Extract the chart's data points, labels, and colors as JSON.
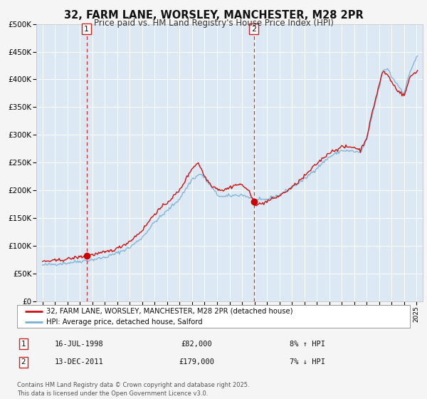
{
  "title": "32, FARM LANE, WORSLEY, MANCHESTER, M28 2PR",
  "subtitle": "Price paid vs. HM Land Registry's House Price Index (HPI)",
  "bg_color": "#dce9f5",
  "outer_bg_color": "#f5f5f5",
  "red_line_label": "32, FARM LANE, WORSLEY, MANCHESTER, M28 2PR (detached house)",
  "blue_line_label": "HPI: Average price, detached house, Salford",
  "sale1_date": "16-JUL-1998",
  "sale1_price": 82000,
  "sale1_hpi": "8% ↑ HPI",
  "sale2_date": "13-DEC-2011",
  "sale2_price": 179000,
  "sale2_hpi": "7% ↓ HPI",
  "vline1_x": 1998.54,
  "vline2_x": 2011.95,
  "dot1_x": 1998.54,
  "dot1_y": 82000,
  "dot2_x": 2011.95,
  "dot2_y": 179000,
  "xlim": [
    1994.5,
    2025.5
  ],
  "ylim": [
    0,
    500000
  ],
  "yticks": [
    0,
    50000,
    100000,
    150000,
    200000,
    250000,
    300000,
    350000,
    400000,
    450000,
    500000
  ],
  "ytick_labels": [
    "£0",
    "£50K",
    "£100K",
    "£150K",
    "£200K",
    "£250K",
    "£300K",
    "£350K",
    "£400K",
    "£450K",
    "£500K"
  ],
  "xtick_years": [
    1995,
    1996,
    1997,
    1998,
    1999,
    2000,
    2001,
    2002,
    2003,
    2004,
    2005,
    2006,
    2007,
    2008,
    2009,
    2010,
    2011,
    2012,
    2013,
    2014,
    2015,
    2016,
    2017,
    2018,
    2019,
    2020,
    2021,
    2022,
    2023,
    2024,
    2025
  ],
  "footer": "Contains HM Land Registry data © Crown copyright and database right 2025.\nThis data is licensed under the Open Government Licence v3.0.",
  "grid_color": "#ffffff",
  "vline_color": "#cc3333",
  "dot_color": "#cc0000",
  "red_line_color": "#cc1111",
  "blue_line_color": "#7bafd4",
  "hpi_waypoints_t": [
    1995.0,
    1996.0,
    1997.0,
    1998.0,
    1999.0,
    2000.0,
    2001.0,
    2002.0,
    2003.0,
    2004.0,
    2005.0,
    2006.0,
    2007.0,
    2007.7,
    2008.5,
    2009.0,
    2009.5,
    2010.0,
    2011.0,
    2011.5,
    2012.0,
    2012.5,
    2013.0,
    2014.0,
    2015.0,
    2016.0,
    2017.0,
    2018.0,
    2019.0,
    2020.0,
    2020.5,
    2021.0,
    2021.5,
    2022.0,
    2022.3,
    2022.7,
    2023.0,
    2023.5,
    2024.0,
    2024.5,
    2025.0
  ],
  "hpi_waypoints_v": [
    65000,
    67000,
    69000,
    72000,
    75000,
    79000,
    87000,
    97000,
    115000,
    143000,
    163000,
    185000,
    220000,
    230000,
    208000,
    192000,
    188000,
    190000,
    192000,
    188000,
    183000,
    182000,
    184000,
    192000,
    205000,
    220000,
    240000,
    260000,
    272000,
    270000,
    268000,
    290000,
    340000,
    385000,
    415000,
    420000,
    405000,
    390000,
    375000,
    415000,
    440000
  ],
  "prop_waypoints_t": [
    1995.0,
    1996.0,
    1997.0,
    1998.0,
    1998.54,
    1999.0,
    2000.0,
    2001.0,
    2002.0,
    2003.0,
    2004.0,
    2005.0,
    2006.0,
    2007.0,
    2007.5,
    2008.0,
    2008.5,
    2009.0,
    2009.5,
    2010.0,
    2010.5,
    2011.0,
    2011.5,
    2011.95,
    2012.0,
    2012.5,
    2013.0,
    2014.0,
    2015.0,
    2016.0,
    2017.0,
    2018.0,
    2019.0,
    2020.0,
    2020.5,
    2021.0,
    2021.5,
    2022.0,
    2022.3,
    2022.8,
    2023.0,
    2023.5,
    2024.0,
    2024.5,
    2025.0
  ],
  "prop_waypoints_v": [
    72000,
    73000,
    76000,
    80000,
    82000,
    84000,
    88000,
    95000,
    108000,
    128000,
    158000,
    178000,
    200000,
    240000,
    250000,
    225000,
    210000,
    203000,
    200000,
    205000,
    210000,
    210000,
    200000,
    179000,
    175000,
    175000,
    180000,
    190000,
    205000,
    225000,
    248000,
    268000,
    278000,
    278000,
    272000,
    295000,
    345000,
    390000,
    415000,
    405000,
    395000,
    380000,
    370000,
    405000,
    415000
  ]
}
